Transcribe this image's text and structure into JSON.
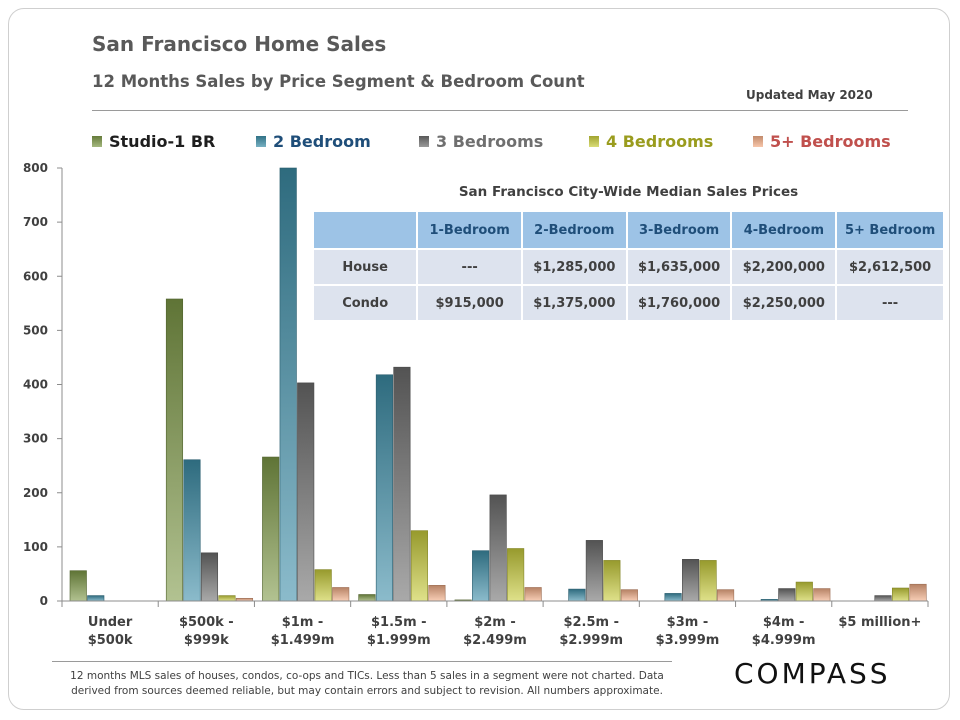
{
  "header": {
    "title": "San Francisco Home Sales",
    "subtitle": "12 Months Sales by Price Segment & Bedroom Count",
    "updated": "Updated May 2020"
  },
  "chart_data": {
    "type": "bar",
    "categories": [
      [
        "Under",
        "$500k"
      ],
      [
        "$500k -",
        "$999k"
      ],
      [
        "$1m -",
        "$1.499m"
      ],
      [
        "$1.5m -",
        "$1.999m"
      ],
      [
        "$2m -",
        "$2.499m"
      ],
      [
        "$2.5m -",
        "$2.999m"
      ],
      [
        "$3m -",
        "$3.999m"
      ],
      [
        "$4m -",
        "$4.999m"
      ],
      [
        "$5 million+"
      ]
    ],
    "series": [
      {
        "name": "Studio-1 BR",
        "color": "#7e9a48",
        "legend_color": "#1e1e1e",
        "values": [
          56,
          558,
          266,
          12,
          2,
          0,
          0,
          0,
          0
        ]
      },
      {
        "name": "2 Bedroom",
        "color": "#3d8ea8",
        "legend_color": "#1f4e79",
        "values": [
          10,
          261,
          800,
          418,
          93,
          22,
          14,
          3,
          0
        ]
      },
      {
        "name": "3 Bedrooms",
        "color": "#6f6f6f",
        "legend_color": "#6f6f6f",
        "values": [
          0,
          89,
          403,
          432,
          196,
          112,
          77,
          23,
          10
        ]
      },
      {
        "name": "4 Bedrooms",
        "color": "#c9cd3c",
        "legend_color": "#9a9c1e",
        "values": [
          0,
          10,
          58,
          130,
          97,
          75,
          75,
          35,
          24
        ]
      },
      {
        "name": "5+ Bedrooms",
        "color": "#f3ad86",
        "legend_color": "#c0504d",
        "values": [
          0,
          5,
          25,
          29,
          25,
          21,
          21,
          23,
          31
        ]
      }
    ],
    "ylim": [
      0,
      800
    ],
    "yticks": [
      0,
      100,
      200,
      300,
      400,
      500,
      600,
      700,
      800
    ],
    "legend_position": "top",
    "grid": false
  },
  "median_table": {
    "caption": "San Francisco City-Wide Median Sales Prices",
    "columns": [
      "",
      "1-Bedroom",
      "2-Bedroom",
      "3-Bedroom",
      "4-Bedroom",
      "5+ Bedroom"
    ],
    "rows": [
      [
        "House",
        "---",
        "$1,285,000",
        "$1,635,000",
        "$2,200,000",
        "$2,612,500"
      ],
      [
        "Condo",
        "$915,000",
        "$1,375,000",
        "$1,760,000",
        "$2,250,000",
        "---"
      ]
    ]
  },
  "footnote": {
    "line1": "12 months MLS sales of houses, condos, co-ops and TICs. Less than 5 sales in a segment were not charted. Data",
    "line2": "derived from sources deemed reliable, but may contain errors and subject to revision. All numbers approximate."
  },
  "brand": {
    "logo": "COMPASS"
  }
}
